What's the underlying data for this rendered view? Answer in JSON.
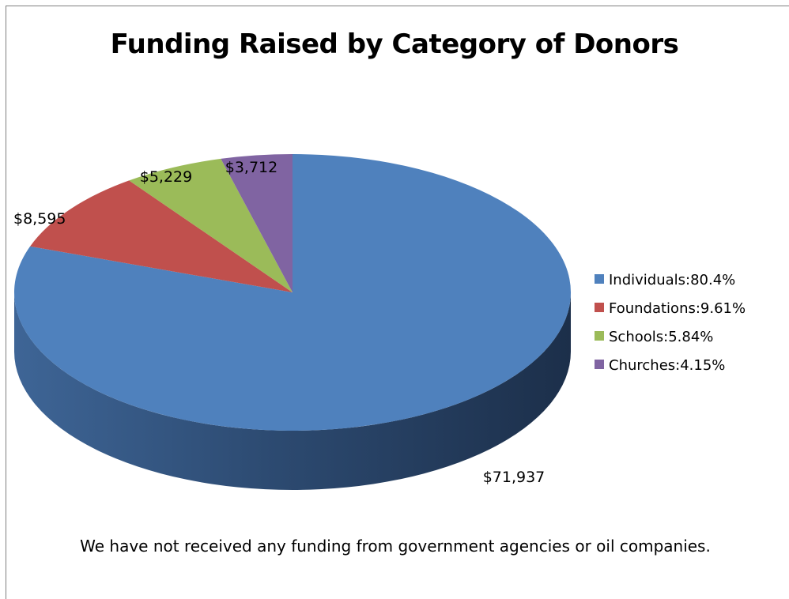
{
  "chart_data": {
    "type": "pie",
    "title": "Funding Raised by Category of Donors",
    "slices": [
      {
        "name": "Individuals",
        "value": 71937,
        "value_label": "$71,937",
        "legend_label": "Individuals:80.4%",
        "color": "#4f81bd"
      },
      {
        "name": "Foundations",
        "value": 8595,
        "value_label": "$8,595",
        "legend_label": "Foundations:9.61%",
        "color": "#c0504d"
      },
      {
        "name": "Schools",
        "value": 5229,
        "value_label": "$5,229",
        "legend_label": "Schools:5.84%",
        "color": "#9bbb59"
      },
      {
        "name": "Churches",
        "value": 3712,
        "value_label": "$3,712",
        "legend_label": "Churches:4.15%",
        "color": "#8064a2"
      }
    ],
    "style": "3d",
    "legend_position": "right"
  },
  "footnote": "We have not received any funding from government agencies or oil companies."
}
